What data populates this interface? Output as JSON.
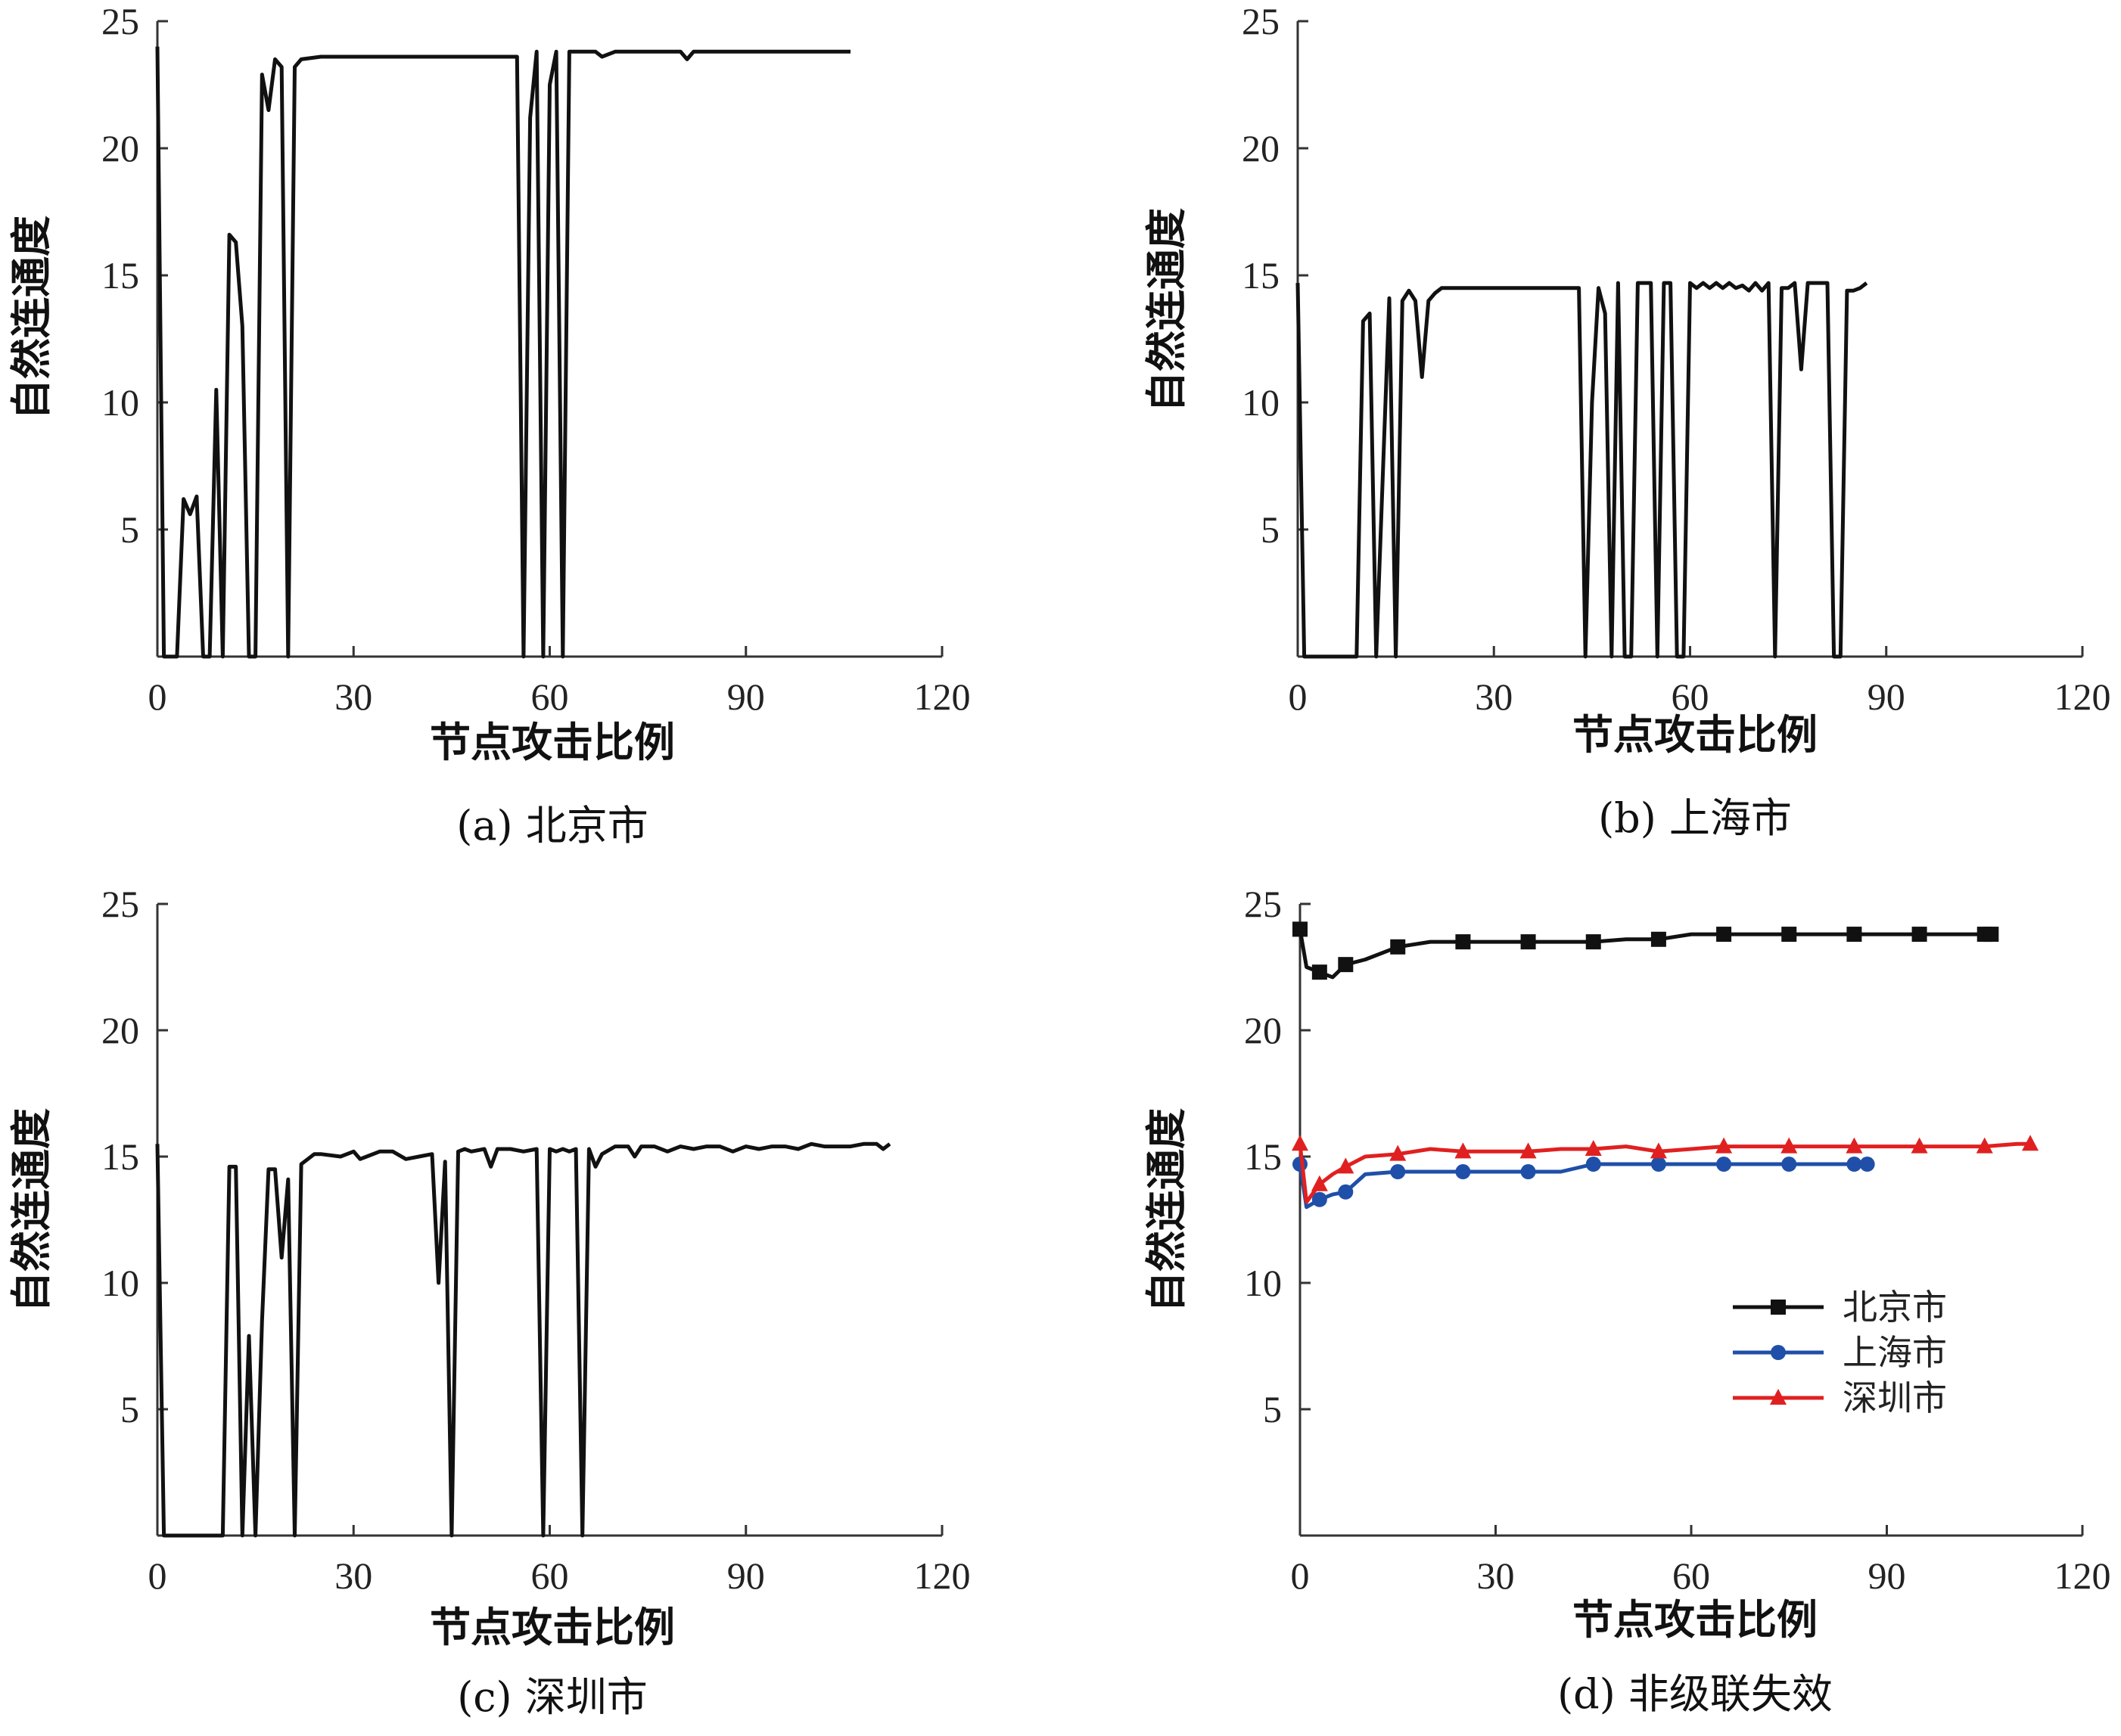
{
  "chart_data": [
    {
      "id": "a",
      "type": "line",
      "caption": "(a) 北京市",
      "xlabel": "节点攻击比例",
      "ylabel": "自然连通度",
      "xlim": [
        0,
        120
      ],
      "ylim": [
        0,
        25
      ],
      "xticks": [
        "0",
        "30",
        "60",
        "90",
        "120"
      ],
      "yticks": [
        "5",
        "10",
        "15",
        "20",
        "25"
      ],
      "series": [
        {
          "color": "#111111",
          "x": [
            0,
            1,
            2,
            3,
            4,
            5,
            6,
            7,
            8,
            9,
            10,
            11,
            12,
            13,
            14,
            15,
            16,
            17,
            18,
            19,
            20,
            21,
            22,
            25,
            30,
            40,
            50,
            55,
            56,
            57,
            58,
            59,
            60,
            61,
            62,
            63,
            65,
            67,
            68,
            70,
            75,
            80,
            81,
            82,
            85,
            90,
            95,
            100,
            106
          ],
          "y": [
            24,
            0,
            0,
            0,
            6.2,
            5.6,
            6.3,
            0,
            0,
            10.5,
            0,
            16.6,
            16.3,
            13,
            0,
            0,
            22.9,
            21.5,
            23.5,
            23.2,
            0,
            23.2,
            23.5,
            23.6,
            23.6,
            23.6,
            23.6,
            23.6,
            0,
            21.2,
            23.8,
            0,
            22.5,
            23.8,
            0,
            23.8,
            23.8,
            23.8,
            23.6,
            23.8,
            23.8,
            23.8,
            23.5,
            23.8,
            23.8,
            23.8,
            23.8,
            23.8,
            23.8
          ]
        }
      ]
    },
    {
      "id": "b",
      "type": "line",
      "caption": "(b) 上海市",
      "xlabel": "节点攻击比例",
      "ylabel": "自然连通度",
      "xlim": [
        0,
        120
      ],
      "ylim": [
        0,
        25
      ],
      "xticks": [
        "0",
        "30",
        "60",
        "90",
        "120"
      ],
      "yticks": [
        "5",
        "10",
        "15",
        "20",
        "25"
      ],
      "series": [
        {
          "color": "#111111",
          "x": [
            0,
            1,
            9,
            10,
            11,
            12,
            14,
            15,
            16,
            17,
            18,
            19,
            20,
            21,
            22,
            25,
            30,
            40,
            43,
            44,
            45,
            46,
            47,
            48,
            49,
            50,
            51,
            52,
            53,
            54,
            55,
            56,
            57,
            58,
            59,
            60,
            61,
            62,
            63,
            64,
            65,
            66,
            67,
            68,
            69,
            70,
            71,
            72,
            73,
            74,
            75,
            76,
            77,
            78,
            79,
            80,
            81,
            82,
            83,
            84,
            85,
            86,
            87
          ],
          "y": [
            14.7,
            0,
            0,
            13.2,
            13.5,
            0,
            14.1,
            0,
            14,
            14.4,
            14,
            11,
            14,
            14.3,
            14.5,
            14.5,
            14.5,
            14.5,
            14.5,
            0,
            10,
            14.5,
            13.5,
            0,
            14.7,
            0,
            0,
            14.7,
            14.7,
            14.7,
            0,
            14.7,
            14.7,
            0,
            0,
            14.7,
            14.5,
            14.7,
            14.5,
            14.7,
            14.5,
            14.7,
            14.5,
            14.6,
            14.4,
            14.7,
            14.4,
            14.7,
            0,
            14.5,
            14.5,
            14.7,
            11.3,
            14.7,
            14.7,
            14.7,
            14.7,
            0,
            0,
            14.4,
            14.4,
            14.5,
            14.7
          ]
        }
      ]
    },
    {
      "id": "c",
      "type": "line",
      "caption": "(c) 深圳市",
      "xlabel": "节点攻击比例",
      "ylabel": "自然连通度",
      "xlim": [
        0,
        120
      ],
      "ylim": [
        0,
        25
      ],
      "xticks": [
        "0",
        "30",
        "60",
        "90",
        "120"
      ],
      "yticks": [
        "5",
        "10",
        "15",
        "20",
        "25"
      ],
      "series": [
        {
          "color": "#111111",
          "x": [
            0,
            1,
            10,
            11,
            12,
            13,
            14,
            15,
            16,
            17,
            18,
            19,
            20,
            21,
            22,
            23,
            24,
            25,
            28,
            30,
            31,
            32,
            34,
            36,
            38,
            40,
            42,
            43,
            44,
            45,
            46,
            47,
            48,
            50,
            51,
            52,
            54,
            56,
            58,
            59,
            60,
            61,
            62,
            63,
            64,
            65,
            66,
            67,
            68,
            70,
            72,
            73,
            74,
            76,
            78,
            80,
            82,
            84,
            86,
            88,
            90,
            92,
            94,
            96,
            98,
            100,
            102,
            104,
            106,
            108,
            110,
            111,
            112
          ],
          "y": [
            15.5,
            0,
            0,
            14.6,
            14.6,
            0,
            7.9,
            0,
            8.5,
            14.5,
            14.5,
            11,
            14.1,
            0,
            14.7,
            14.9,
            15.1,
            15.1,
            15.0,
            15.2,
            14.9,
            15.0,
            15.2,
            15.2,
            14.9,
            15.0,
            15.1,
            10,
            14.8,
            0,
            15.2,
            15.3,
            15.2,
            15.3,
            14.6,
            15.3,
            15.3,
            15.2,
            15.3,
            0,
            15.3,
            15.2,
            15.3,
            15.2,
            15.3,
            0,
            15.3,
            14.6,
            15.1,
            15.4,
            15.4,
            15.0,
            15.4,
            15.4,
            15.2,
            15.4,
            15.3,
            15.4,
            15.4,
            15.2,
            15.4,
            15.3,
            15.4,
            15.4,
            15.3,
            15.5,
            15.4,
            15.4,
            15.4,
            15.5,
            15.5,
            15.3,
            15.5
          ]
        }
      ]
    },
    {
      "id": "d",
      "type": "line",
      "caption": "(d) 非级联失效",
      "xlabel": "节点攻击比例",
      "ylabel": "自然连通度",
      "xlim": [
        0,
        120
      ],
      "ylim": [
        0,
        25
      ],
      "xticks": [
        "0",
        "30",
        "60",
        "90",
        "120"
      ],
      "yticks": [
        "5",
        "10",
        "15",
        "20",
        "25"
      ],
      "legend_position": "center-right",
      "series": [
        {
          "name": "北京市",
          "color": "#111111",
          "marker": "square",
          "x": [
            0,
            1,
            3,
            5,
            7,
            10,
            15,
            20,
            25,
            30,
            35,
            40,
            45,
            50,
            55,
            60,
            65,
            70,
            75,
            80,
            85,
            90,
            95,
            100,
            105,
            106
          ],
          "y": [
            24.0,
            22.5,
            22.3,
            22.1,
            22.6,
            22.8,
            23.3,
            23.5,
            23.5,
            23.5,
            23.5,
            23.5,
            23.5,
            23.6,
            23.6,
            23.8,
            23.8,
            23.8,
            23.8,
            23.8,
            23.8,
            23.8,
            23.8,
            23.8,
            23.8,
            23.8
          ]
        },
        {
          "name": "上海市",
          "color": "#1f4fa8",
          "marker": "circle",
          "x": [
            0,
            1,
            3,
            5,
            7,
            10,
            15,
            20,
            25,
            30,
            35,
            40,
            45,
            50,
            55,
            60,
            65,
            70,
            75,
            80,
            85,
            87
          ],
          "y": [
            14.7,
            13.0,
            13.3,
            13.5,
            13.6,
            14.3,
            14.4,
            14.4,
            14.4,
            14.4,
            14.4,
            14.4,
            14.7,
            14.7,
            14.7,
            14.7,
            14.7,
            14.7,
            14.7,
            14.7,
            14.7,
            14.7
          ]
        },
        {
          "name": "深圳市",
          "color": "#e02020",
          "marker": "triangle",
          "x": [
            0,
            1,
            3,
            5,
            7,
            10,
            15,
            20,
            25,
            30,
            35,
            40,
            45,
            50,
            55,
            60,
            65,
            70,
            75,
            80,
            85,
            90,
            95,
            100,
            105,
            110,
            112
          ],
          "y": [
            15.5,
            13.2,
            13.9,
            14.3,
            14.6,
            15.0,
            15.1,
            15.3,
            15.2,
            15.2,
            15.2,
            15.3,
            15.3,
            15.4,
            15.2,
            15.3,
            15.4,
            15.4,
            15.4,
            15.4,
            15.4,
            15.4,
            15.4,
            15.4,
            15.4,
            15.5,
            15.5
          ]
        }
      ]
    }
  ]
}
